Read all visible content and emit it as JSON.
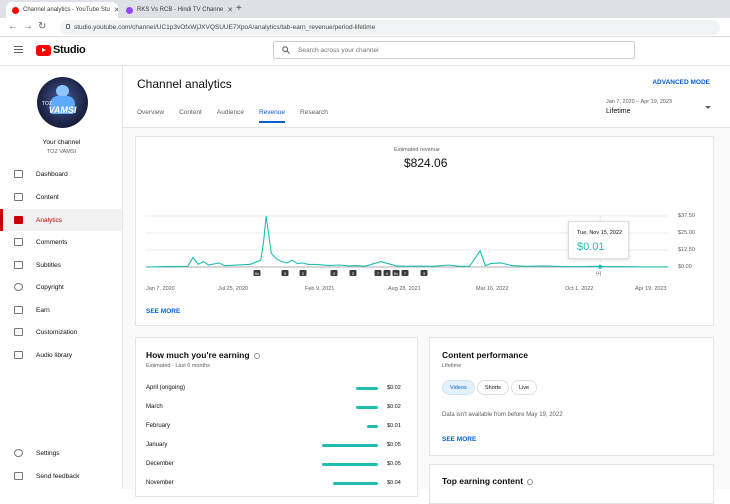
{
  "browser": {
    "tabs": [
      {
        "title": "Channel analytics - YouTube Stu",
        "color": "#ff0000"
      },
      {
        "title": "RKS Vs RCB - Hindi TV Channe",
        "color": "#9146ff"
      }
    ],
    "url": "studio.youtube.com/channel/UC1p3vOfxWjJXVQSUUE7XpoA/analytics/tab-earn_revenue/period-lifetime"
  },
  "header": {
    "logo": "Studio",
    "search_placeholder": "Search across your channel"
  },
  "sidebar": {
    "channel_label": "Your channel",
    "channel_name": "TOZ VAMSI",
    "items": [
      {
        "label": "Dashboard",
        "icon": "dashboard-icon"
      },
      {
        "label": "Content",
        "icon": "content-icon"
      },
      {
        "label": "Analytics",
        "icon": "analytics-icon",
        "active": true
      },
      {
        "label": "Comments",
        "icon": "comments-icon"
      },
      {
        "label": "Subtitles",
        "icon": "subtitles-icon"
      },
      {
        "label": "Copyright",
        "icon": "copyright-icon"
      },
      {
        "label": "Earn",
        "icon": "earn-icon"
      },
      {
        "label": "Customization",
        "icon": "customization-icon"
      },
      {
        "label": "Audio library",
        "icon": "audio-library-icon"
      }
    ],
    "bottom": [
      {
        "label": "Settings",
        "icon": "settings-icon"
      },
      {
        "label": "Send feedback",
        "icon": "feedback-icon"
      }
    ]
  },
  "main": {
    "title": "Channel analytics",
    "advanced": "ADVANCED MODE",
    "tabs": [
      "Overview",
      "Content",
      "Audience",
      "Revenue",
      "Research"
    ],
    "active_tab": "Revenue",
    "period_dates": "Jan 7, 2020 – Apr 19, 2023",
    "period_value": "Lifetime"
  },
  "revenue": {
    "label": "Estimated revenue",
    "value": "$824.06",
    "see_more": "SEE MORE",
    "tooltip_date": "Tue, Nov 15, 2022",
    "tooltip_value": "$0.01",
    "video_markers": [
      "5v",
      "3",
      "2",
      "3",
      "2",
      "7",
      "4",
      "5v",
      "7",
      "3"
    ]
  },
  "earning": {
    "title": "How much you're earning",
    "subtitle": "Estimated · Last 6 months",
    "rows": [
      {
        "month": "April (ongoing)",
        "value": "$0.02",
        "amount": 0.02
      },
      {
        "month": "March",
        "value": "$0.02",
        "amount": 0.02
      },
      {
        "month": "February",
        "value": "$0.01",
        "amount": 0.01
      },
      {
        "month": "January",
        "value": "$0.05",
        "amount": 0.05
      },
      {
        "month": "December",
        "value": "$0.05",
        "amount": 0.05
      },
      {
        "month": "November",
        "value": "$0.04",
        "amount": 0.04
      }
    ]
  },
  "content_performance": {
    "title": "Content performance",
    "subtitle": "Lifetime",
    "chips": [
      "Videos",
      "Shorts",
      "Live"
    ],
    "note": "Data isn't available from before May 19, 2022",
    "see_more": "SEE MORE"
  },
  "top_earning": {
    "title": "Top earning content"
  },
  "chart_data": {
    "type": "line",
    "title": "Estimated revenue",
    "x_ticks": [
      "Jan 7, 2020",
      "Jul 25, 2020",
      "Feb 9, 2021",
      "Aug 28, 2021",
      "Mar 16, 2022",
      "Oct 1, 2022",
      "Apr 19, 2023"
    ],
    "y_ticks": [
      "$37.50",
      "$25.00",
      "$12.50",
      "$0.00"
    ],
    "ylim": [
      0,
      37.5
    ],
    "series": [
      {
        "color": "#1fbeb0",
        "x": [
          0,
          0.04,
          0.08,
          0.09,
          0.1,
          0.11,
          0.12,
          0.14,
          0.15,
          0.16,
          0.2,
          0.22,
          0.225,
          0.23,
          0.235,
          0.24,
          0.25,
          0.26,
          0.27,
          0.28,
          0.29,
          0.3,
          0.31,
          0.33,
          0.35,
          0.37,
          0.39,
          0.4,
          0.42,
          0.45,
          0.48,
          0.5,
          0.52,
          0.55,
          0.58,
          0.6,
          0.62,
          0.64,
          0.65,
          0.66,
          0.68,
          0.7,
          0.73,
          0.76,
          0.8,
          0.84,
          0.86,
          0.88,
          0.9,
          0.92,
          0.95,
          1
        ],
        "y": [
          0,
          0.3,
          0.5,
          7,
          2,
          4,
          1.5,
          3,
          1,
          1.2,
          2,
          5,
          18,
          37.5,
          24,
          10,
          6,
          4,
          3,
          5,
          2.5,
          3,
          2,
          1.8,
          1,
          1.5,
          0.8,
          1,
          0.6,
          4,
          0.8,
          0.5,
          0.7,
          0.5,
          1.5,
          0.5,
          0.5,
          12,
          1,
          2.5,
          3,
          1,
          0.5,
          0.8,
          0.3,
          0.3,
          0.5,
          0.2,
          0.3,
          0.2,
          0.1,
          0.1
        ]
      }
    ]
  }
}
